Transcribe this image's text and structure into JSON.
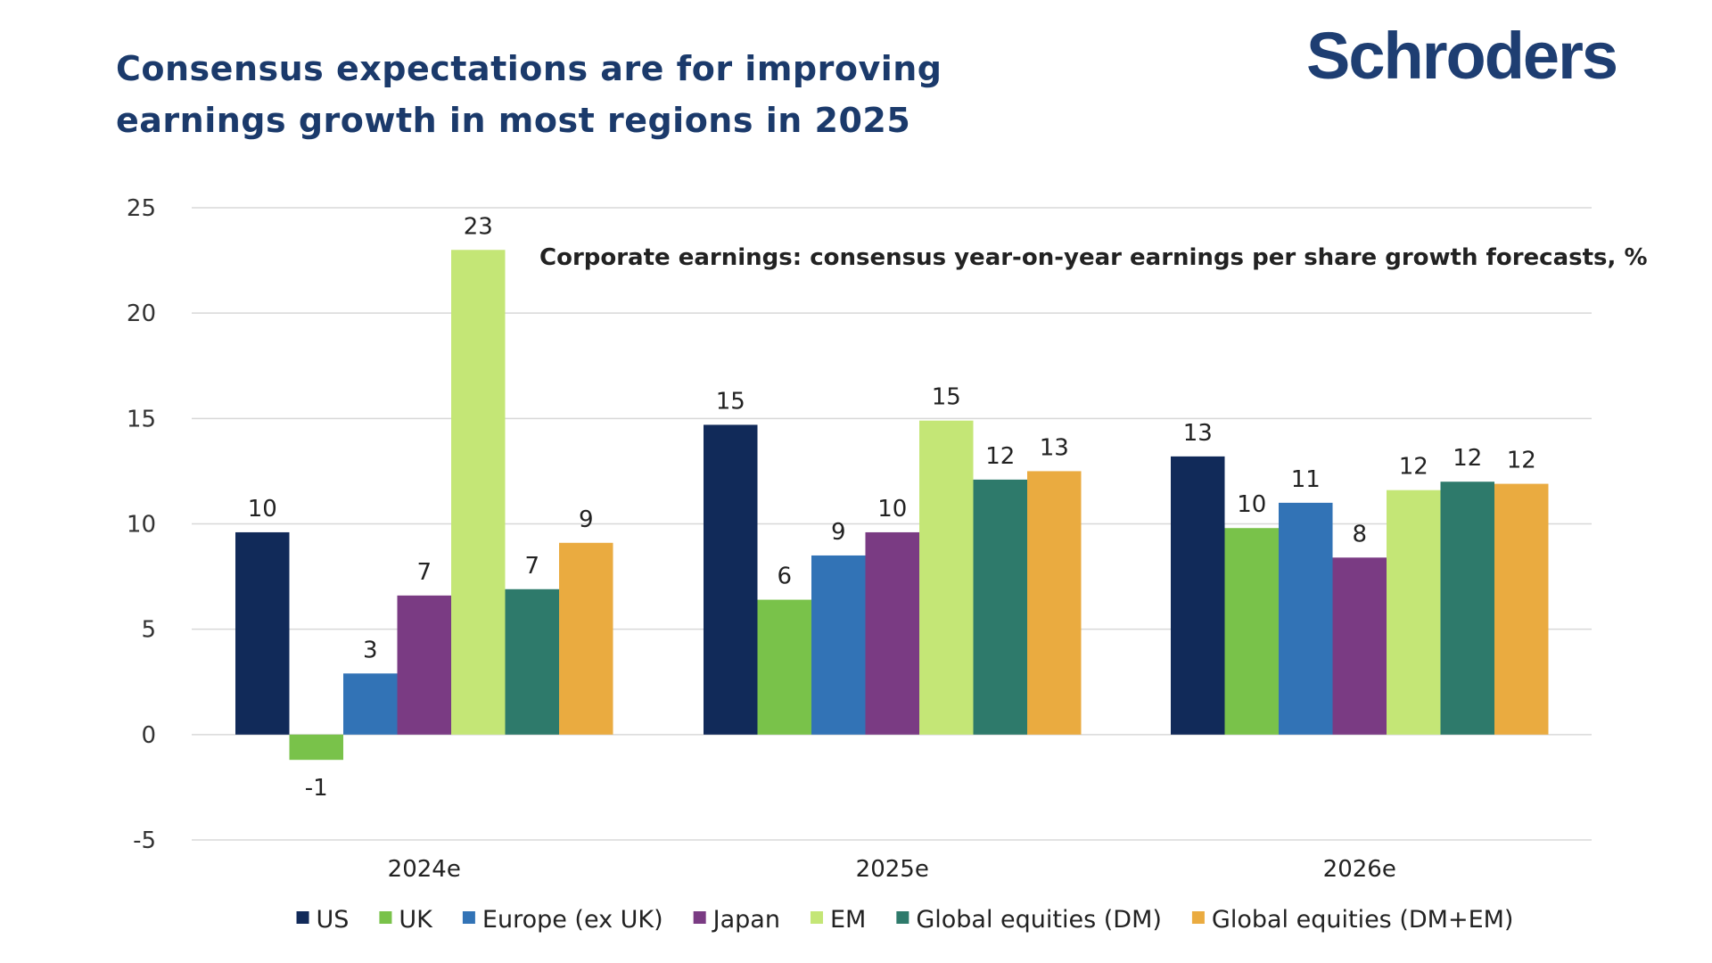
{
  "headline": {
    "line1": "Consensus expectations are for improving",
    "line2": "earnings growth in most regions in 2025"
  },
  "brand": "Schroders",
  "chart_data": {
    "type": "bar",
    "title": "Corporate earnings: consensus year-on-year earnings per share growth forecasts, %",
    "categories": [
      "2024e",
      "2025e",
      "2026e"
    ],
    "ylim": [
      -5,
      25
    ],
    "yticks": [
      -5,
      0,
      5,
      10,
      15,
      20,
      25
    ],
    "grid": true,
    "legend_position": "bottom",
    "series": [
      {
        "name": "US",
        "color": "#112a59",
        "values": [
          9.6,
          14.7,
          13.2
        ],
        "labels": [
          "10",
          "15",
          "13"
        ]
      },
      {
        "name": "UK",
        "color": "#79c24a",
        "values": [
          -1.2,
          6.4,
          9.8
        ],
        "labels": [
          "-1",
          "6",
          "10"
        ]
      },
      {
        "name": "Europe (ex UK)",
        "color": "#3273b6",
        "values": [
          2.9,
          8.5,
          11.0
        ],
        "labels": [
          "3",
          "9",
          "11"
        ]
      },
      {
        "name": "Japan",
        "color": "#7a3b83",
        "values": [
          6.6,
          9.6,
          8.4
        ],
        "labels": [
          "7",
          "10",
          "8"
        ]
      },
      {
        "name": "EM",
        "color": "#c4e676",
        "values": [
          23.0,
          14.9,
          11.6
        ],
        "labels": [
          "23",
          "15",
          "12"
        ]
      },
      {
        "name": "Global equities (DM)",
        "color": "#2e7a6b",
        "values": [
          6.9,
          12.1,
          12.0
        ],
        "labels": [
          "7",
          "12",
          "12"
        ]
      },
      {
        "name": "Global equities (DM+EM)",
        "color": "#eaab40",
        "values": [
          9.1,
          12.5,
          11.9
        ],
        "labels": [
          "9",
          "13",
          "12"
        ]
      }
    ]
  }
}
